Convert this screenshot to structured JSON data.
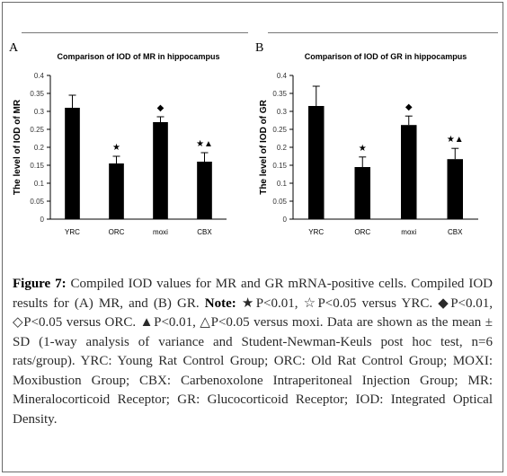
{
  "figure": {
    "caption_label": "Figure 7:",
    "caption_text": " Compiled IOD values for MR and GR mRNA-positive cells. Compiled IOD results for (A) MR, and (B) GR. ",
    "note_label": "Note:",
    "note_text": " ★P<0.01, ☆P<0.05 versus YRC. ◆P<0.01, ◇P<0.05 versus ORC. ▲P<0.01, △P<0.05 versus moxi. Data are shown as the mean ± SD (1-way analysis of variance and Student-Newman-Keuls post hoc test, n=6 rats/group). YRC: Young Rat Control Group; ORC: Old Rat Control Group; MOXI: Moxibustion Group; CBX: Carbenoxolone Intraperitoneal Injection Group; MR: Mineralocorticoid Receptor; GR: Glucocorticoid Receptor; IOD: Integrated Optical Density."
  },
  "chart_data": [
    {
      "panel": "A",
      "type": "bar",
      "title": "Comparison of IOD of MR in  hippocampus",
      "ylabel": "The level of IOD of MR",
      "xlabel": "",
      "categories": [
        "YRC",
        "ORC",
        "moxi",
        "CBX"
      ],
      "values": [
        0.31,
        0.155,
        0.27,
        0.16
      ],
      "errors": [
        0.035,
        0.02,
        0.015,
        0.025
      ],
      "markers": [
        "",
        "★",
        "◆",
        "★▲"
      ],
      "ylim": [
        0,
        0.4
      ],
      "yticks": [
        "0",
        "0.05",
        "0.1",
        "0.15",
        "0.2",
        "0.25",
        "0.3",
        "0.35",
        "0.4"
      ],
      "bar_color": "#000000"
    },
    {
      "panel": "B",
      "type": "bar",
      "title": "Comparison of IOD of GR in  hippocampus",
      "ylabel": "The level of IOD of GR",
      "xlabel": "",
      "categories": [
        "YRC",
        "ORC",
        "moxi",
        "CBX"
      ],
      "values": [
        0.315,
        0.145,
        0.262,
        0.167
      ],
      "errors": [
        0.055,
        0.028,
        0.025,
        0.03
      ],
      "markers": [
        "",
        "★",
        "◆",
        "★▲"
      ],
      "ylim": [
        0,
        0.4
      ],
      "yticks": [
        "0",
        "0.05",
        "0.1",
        "0.15",
        "0.2",
        "0.25",
        "0.3",
        "0.35",
        "0.4"
      ],
      "bar_color": "#000000"
    }
  ]
}
